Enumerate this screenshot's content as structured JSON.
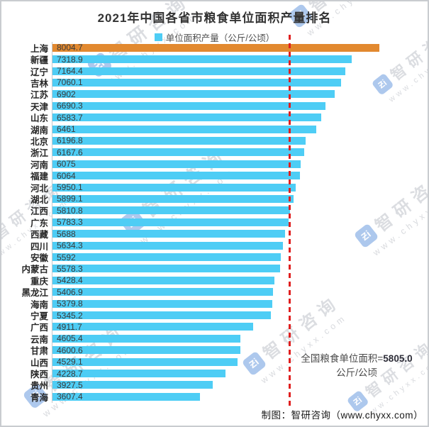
{
  "page": {
    "title": "2021年中国各省市粮食单位面积产量排名",
    "credit": "制图：智研咨询（www.chyxx.com）"
  },
  "legend": {
    "label": "单位面积产量（公斤/公顷）",
    "swatch_color": "#4ecdf5"
  },
  "chart_data": {
    "type": "bar",
    "orientation": "horizontal",
    "title": "2021年中国各省市粮食单位面积产量排名",
    "legend": [
      "单位面积产量（公斤/公顷）"
    ],
    "unit": "公斤/公顷",
    "categories": [
      "上海",
      "新疆",
      "辽宁",
      "吉林",
      "江苏",
      "天津",
      "山东",
      "湖南",
      "北京",
      "浙江",
      "河南",
      "福建",
      "河北",
      "湖北",
      "江西",
      "广东",
      "西藏",
      "四川",
      "安徽",
      "内蒙古",
      "重庆",
      "黑龙江",
      "海南",
      "宁夏",
      "广西",
      "云南",
      "甘肃",
      "山西",
      "陕西",
      "贵州",
      "青海"
    ],
    "values": [
      8004.7,
      7318.9,
      7164.4,
      7060.1,
      6902,
      6690.3,
      6583.7,
      6461,
      6196.8,
      6167.6,
      6075,
      6064,
      5950.1,
      5899.1,
      5810.8,
      5783.3,
      5688,
      5634.3,
      5592,
      5578.3,
      5428.4,
      5406.9,
      5379.8,
      5345.2,
      4911.7,
      4605.4,
      4600.6,
      4529.1,
      4228.7,
      3927.5,
      3607.4
    ],
    "x_max": 8004.7,
    "bar_color": "#4ecdf5",
    "highlight_index": 0,
    "highlight_color": "#e2892f",
    "grid": false,
    "value_labels": "inside-left",
    "reference_line": {
      "value": 5805.0,
      "color": "#e01f1f",
      "style": "dashed",
      "annotation_prefix": "全国粮食单位面积=",
      "annotation_value": "5805.0",
      "annotation_suffix": "公斤/公顷"
    }
  },
  "watermark": {
    "logo_glyph": "Ƶi",
    "brand": "智研咨询",
    "url": "www.chyxx.com"
  }
}
